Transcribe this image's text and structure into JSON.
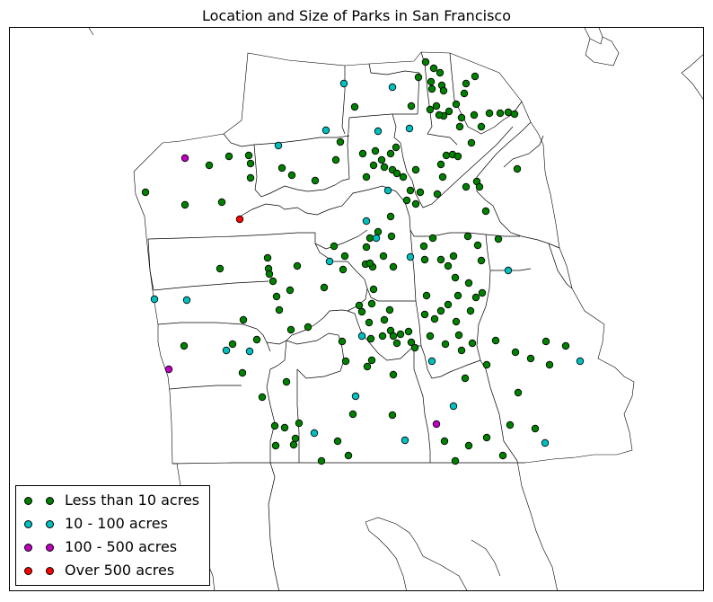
{
  "title": "Location and Size of Parks in San Francisco",
  "legend": {
    "items": [
      {
        "label": "Less than 10 acres",
        "color": "#008000"
      },
      {
        "label": "10 - 100 acres",
        "color": "#00bfbf"
      },
      {
        "label": "100 - 500 acres",
        "color": "#bf00bf"
      },
      {
        "label": "Over 500 acres",
        "color": "#ff0000"
      }
    ]
  },
  "chart_data": {
    "type": "scatter",
    "title": "Location and Size of Parks in San Francisco",
    "categories": [
      "Less than 10 acres",
      "10 - 100 acres",
      "100 - 500 acres",
      "Over 500 acres"
    ],
    "legend_placement": "lower-left",
    "grid": false,
    "note_units": "points given as map positions",
    "series": [
      {
        "name": "Less than 10 acres",
        "color": "#008000",
        "points": [
          [
            473,
            68
          ],
          [
            482,
            75
          ],
          [
            489,
            80
          ],
          [
            465,
            85
          ],
          [
            479,
            90
          ],
          [
            491,
            94
          ],
          [
            518,
            92
          ],
          [
            528,
            84
          ],
          [
            480,
            98
          ],
          [
            493,
            100
          ],
          [
            516,
            103
          ],
          [
            507,
            115
          ],
          [
            485,
            117
          ],
          [
            478,
            121
          ],
          [
            499,
            123
          ],
          [
            527,
            127
          ],
          [
            493,
            128
          ],
          [
            513,
            130
          ],
          [
            544,
            125
          ],
          [
            565,
            124
          ],
          [
            556,
            125
          ],
          [
            572,
            126
          ],
          [
            535,
            140
          ],
          [
            511,
            140
          ],
          [
            488,
            127
          ],
          [
            457,
            117
          ],
          [
            394,
            118
          ],
          [
            378,
            157
          ],
          [
            403,
            170
          ],
          [
            417,
            167
          ],
          [
            440,
            163
          ],
          [
            434,
            170
          ],
          [
            424,
            177
          ],
          [
            415,
            183
          ],
          [
            427,
            185
          ],
          [
            407,
            196
          ],
          [
            436,
            188
          ],
          [
            441,
            192
          ],
          [
            448,
            196
          ],
          [
            462,
            188
          ],
          [
            496,
            172
          ],
          [
            503,
            171
          ],
          [
            490,
            182
          ],
          [
            492,
            196
          ],
          [
            509,
            173
          ],
          [
            524,
            158
          ],
          [
            575,
            187
          ],
          [
            530,
            201
          ],
          [
            518,
            207
          ],
          [
            533,
            207
          ],
          [
            456,
            211
          ],
          [
            467,
            213
          ],
          [
            486,
            215
          ],
          [
            452,
            222
          ],
          [
            462,
            226
          ],
          [
            540,
            234
          ],
          [
            232,
            183
          ],
          [
            254,
            173
          ],
          [
            276,
            172
          ],
          [
            278,
            181
          ],
          [
            278,
            197
          ],
          [
            313,
            186
          ],
          [
            324,
            194
          ],
          [
            350,
            200
          ],
          [
            373,
            177
          ],
          [
            161,
            213
          ],
          [
            205,
            227
          ],
          [
            246,
            224
          ],
          [
            244,
            298
          ],
          [
            297,
            286
          ],
          [
            298,
            298
          ],
          [
            299,
            304
          ],
          [
            303,
            312
          ],
          [
            330,
            295
          ],
          [
            307,
            329
          ],
          [
            310,
            344
          ],
          [
            322,
            322
          ],
          [
            270,
            355
          ],
          [
            285,
            377
          ],
          [
            323,
            366
          ],
          [
            342,
            363
          ],
          [
            360,
            319
          ],
          [
            371,
            273
          ],
          [
            383,
            284
          ],
          [
            381,
            299
          ],
          [
            407,
            274
          ],
          [
            411,
            264
          ],
          [
            420,
            257
          ],
          [
            435,
            262
          ],
          [
            434,
            240
          ],
          [
            406,
            293
          ],
          [
            414,
            296
          ],
          [
            411,
            292
          ],
          [
            426,
            284
          ],
          [
            437,
            296
          ],
          [
            415,
            321
          ],
          [
            399,
            339
          ],
          [
            402,
            346
          ],
          [
            413,
            337
          ],
          [
            427,
            355
          ],
          [
            410,
            358
          ],
          [
            434,
            367
          ],
          [
            445,
            371
          ],
          [
            454,
            368
          ],
          [
            457,
            380
          ],
          [
            461,
            386
          ],
          [
            441,
            381
          ],
          [
            437,
            373
          ],
          [
            425,
            373
          ],
          [
            433,
            344
          ],
          [
            380,
            379
          ],
          [
            412,
            376
          ],
          [
            384,
            401
          ],
          [
            408,
            407
          ],
          [
            413,
            400
          ],
          [
            437,
            416
          ],
          [
            471,
            273
          ],
          [
            481,
            264
          ],
          [
            472,
            288
          ],
          [
            490,
            288
          ],
          [
            498,
            295
          ],
          [
            504,
            284
          ],
          [
            520,
            262
          ],
          [
            531,
            272
          ],
          [
            554,
            265
          ],
          [
            535,
            289
          ],
          [
            506,
            308
          ],
          [
            474,
            328
          ],
          [
            490,
            345
          ],
          [
            472,
            349
          ],
          [
            483,
            354
          ],
          [
            509,
            328
          ],
          [
            529,
            330
          ],
          [
            523,
            345
          ],
          [
            536,
            325
          ],
          [
            521,
            314
          ],
          [
            498,
            338
          ],
          [
            507,
            357
          ],
          [
            510,
            372
          ],
          [
            478,
            373
          ],
          [
            495,
            382
          ],
          [
            513,
            389
          ],
          [
            525,
            381
          ],
          [
            551,
            378
          ],
          [
            573,
            391
          ],
          [
            590,
            398
          ],
          [
            607,
            379
          ],
          [
            629,
            384
          ],
          [
            611,
            405
          ],
          [
            541,
            405
          ],
          [
            517,
            420
          ],
          [
            204,
            384
          ],
          [
            258,
            382
          ],
          [
            269,
            414
          ],
          [
            318,
            424
          ],
          [
            291,
            441
          ],
          [
            305,
            473
          ],
          [
            316,
            475
          ],
          [
            332,
            470
          ],
          [
            328,
            487
          ],
          [
            306,
            495
          ],
          [
            326,
            494
          ],
          [
            357,
            512
          ],
          [
            387,
            506
          ],
          [
            375,
            490
          ],
          [
            392,
            460
          ],
          [
            436,
            461
          ],
          [
            494,
            490
          ],
          [
            521,
            495
          ],
          [
            541,
            486
          ],
          [
            506,
            512
          ],
          [
            559,
            506
          ],
          [
            567,
            472
          ],
          [
            595,
            476
          ],
          [
            576,
            436
          ]
        ]
      },
      {
        "name": "10 - 100 acres",
        "color": "#00bfbf",
        "points": [
          [
            382,
            92
          ],
          [
            436,
            96
          ],
          [
            362,
            144
          ],
          [
            420,
            145
          ],
          [
            455,
            142
          ],
          [
            309,
            161
          ],
          [
            431,
            211
          ],
          [
            407,
            245
          ],
          [
            418,
            264
          ],
          [
            366,
            290
          ],
          [
            456,
            285
          ],
          [
            565,
            300
          ],
          [
            171,
            332
          ],
          [
            207,
            333
          ],
          [
            251,
            389
          ],
          [
            277,
            390
          ],
          [
            402,
            373
          ],
          [
            480,
            401
          ],
          [
            395,
            440
          ],
          [
            504,
            451
          ],
          [
            349,
            481
          ],
          [
            450,
            489
          ],
          [
            606,
            492
          ],
          [
            645,
            401
          ]
        ]
      },
      {
        "name": "100 - 500 acres",
        "color": "#bf00bf",
        "points": [
          [
            205,
            175
          ],
          [
            187,
            410
          ],
          [
            485,
            471
          ]
        ]
      },
      {
        "name": "Over 500 acres",
        "color": "#ff0000",
        "points": [
          [
            266,
            243
          ]
        ]
      }
    ]
  }
}
